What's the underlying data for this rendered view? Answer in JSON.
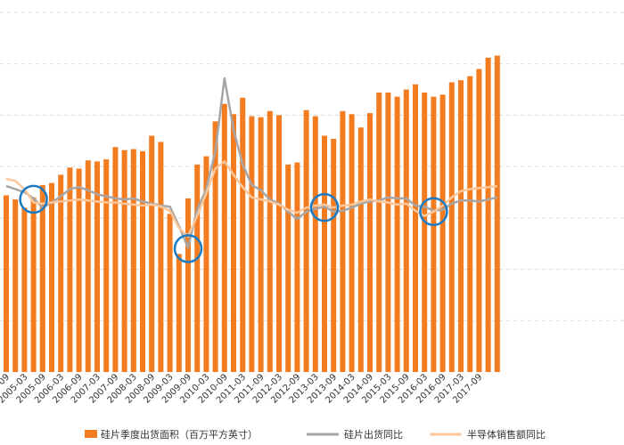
{
  "chart_data": {
    "type": "bar",
    "title": "",
    "xlabel": "",
    "ylabel": "",
    "x_tick_labels": [
      "2004-09",
      "2005-03",
      "2005-09",
      "2006-03",
      "2006-09",
      "2007-03",
      "2007-09",
      "2008-03",
      "2008-09",
      "2009-03",
      "2009-09",
      "2010-03",
      "2010-09",
      "2011-03",
      "2011-09",
      "2012-03",
      "2012-09",
      "2013-03",
      "2013-09",
      "2014-03",
      "2014-09",
      "2015-03",
      "2015-09",
      "2016-03",
      "2016-09",
      "2017-03",
      "2017-09"
    ],
    "bar_series": {
      "name": "硅片季度出货面积（百万平方英寸）",
      "color": "#F47C20",
      "values": [
        1720,
        1680,
        1600,
        1700,
        1820,
        1840,
        1920,
        1990,
        1980,
        2060,
        2050,
        2070,
        2190,
        2160,
        2170,
        2150,
        2300,
        2240,
        1540,
        1150,
        1690,
        2020,
        2100,
        2440,
        2610,
        2510,
        2670,
        2490,
        2480,
        2540,
        2500,
        2020,
        2040,
        2550,
        2490,
        2300,
        2270,
        2540,
        2510,
        2380,
        2520,
        2720,
        2720,
        2680,
        2750,
        2800,
        2720,
        2680,
        2700,
        2820,
        2840,
        2880,
        2950,
        3060,
        3080
      ]
    },
    "line_series": [
      {
        "name": "硅片出货同比",
        "color": "#A6A6A6",
        "values": [
          1810,
          1780,
          1750,
          1690,
          1600,
          1650,
          1710,
          1780,
          1800,
          1770,
          1730,
          1710,
          1690,
          1680,
          1690,
          1660,
          1640,
          1620,
          1610,
          1420,
          1210,
          1580,
          1780,
          2150,
          2860,
          2360,
          2020,
          1820,
          1770,
          1680,
          1640,
          1560,
          1490,
          1560,
          1590,
          1610,
          1560,
          1570,
          1600,
          1640,
          1660,
          1670,
          1700,
          1690,
          1690,
          1620,
          1610,
          1570,
          1580,
          1640,
          1670,
          1670,
          1660,
          1680,
          1700
        ]
      },
      {
        "name": "半导体销售额同比",
        "color": "#FBC79B",
        "values": [
          1880,
          1860,
          1780,
          1650,
          1640,
          1650,
          1660,
          1670,
          1680,
          1670,
          1660,
          1650,
          1650,
          1640,
          1630,
          1620,
          1630,
          1610,
          1570,
          1400,
          1320,
          1520,
          1740,
          1980,
          2050,
          1920,
          1800,
          1700,
          1680,
          1660,
          1630,
          1580,
          1550,
          1600,
          1620,
          1630,
          1600,
          1620,
          1630,
          1660,
          1680,
          1660,
          1650,
          1630,
          1640,
          1570,
          1520,
          1560,
          1620,
          1700,
          1760,
          1780,
          1790,
          1800,
          1810
        ]
      }
    ],
    "ylim": [
      0,
      3500
    ],
    "grid": true,
    "legend_position": "bottom",
    "highlight_circles": [
      {
        "label": "",
        "index": 3
      },
      {
        "label": "",
        "index": 20
      },
      {
        "label": "",
        "index": 35
      },
      {
        "label": "",
        "index": 47
      }
    ],
    "circle_color": "#1A7BC4"
  }
}
